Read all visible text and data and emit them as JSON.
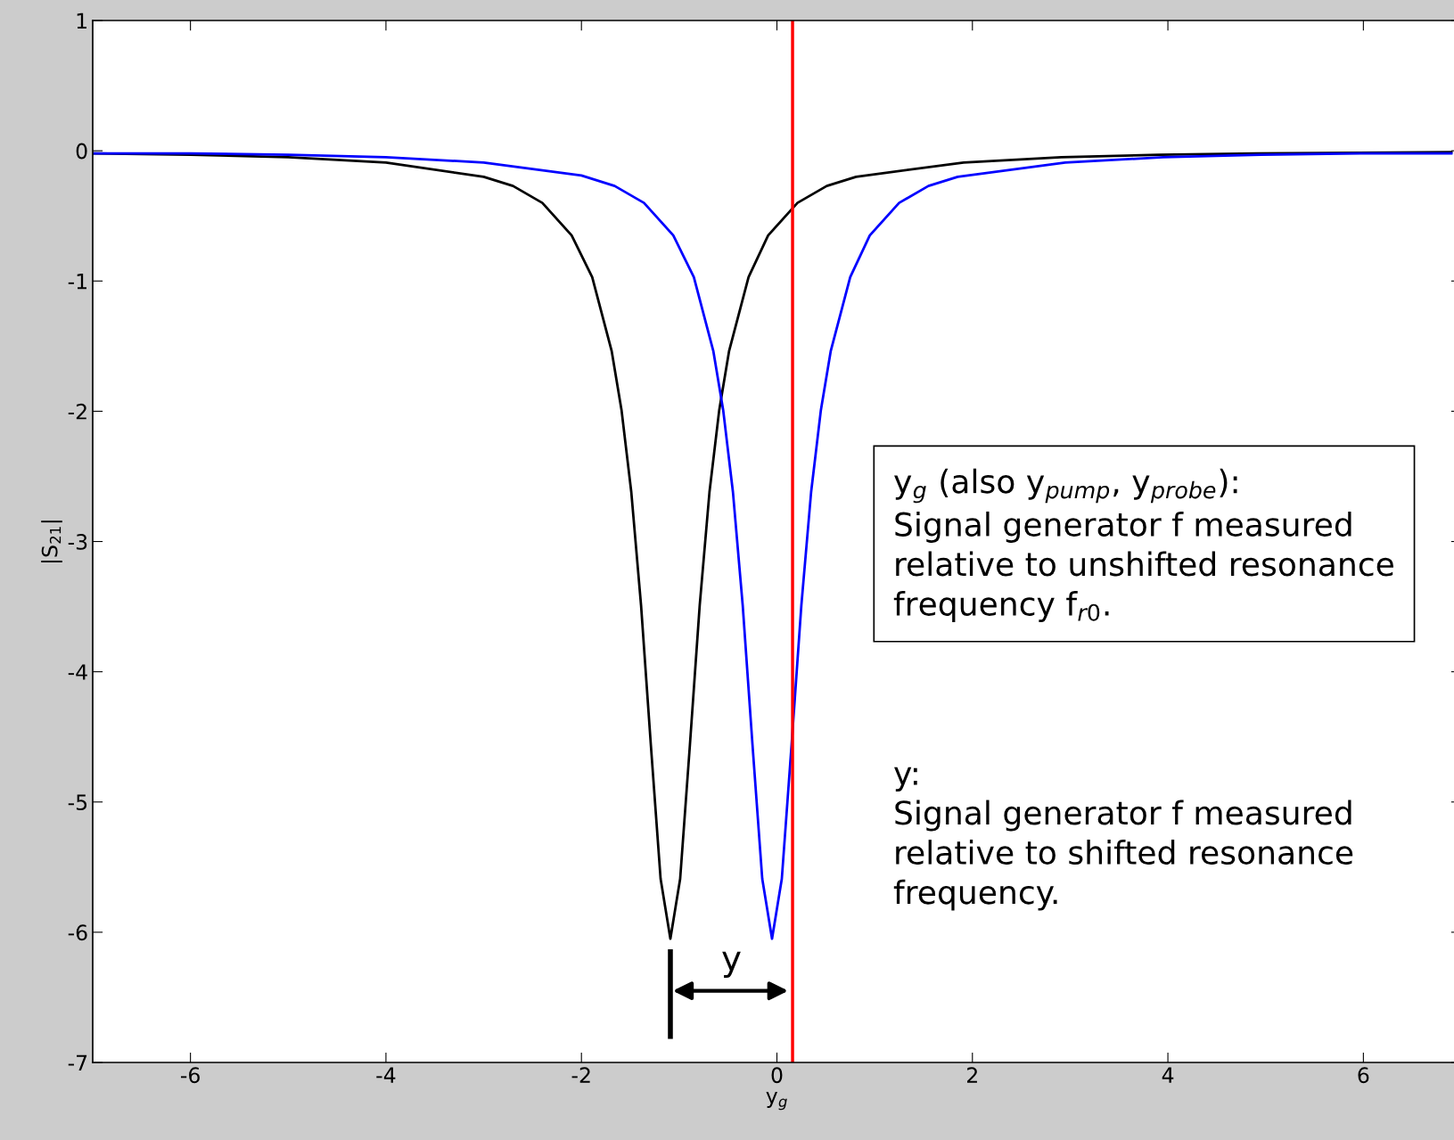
{
  "chart_data": {
    "type": "line",
    "xlabel": "y$_{g}$",
    "ylabel": "|S$_{21}$|",
    "xlim": [
      -7,
      7
    ],
    "ylim": [
      -7,
      1
    ],
    "xticks": [
      -6,
      -4,
      -2,
      0,
      2,
      4,
      6
    ],
    "yticks": [
      -7,
      -6,
      -5,
      -4,
      -3,
      -2,
      -1,
      0,
      1
    ],
    "grid": false,
    "legend": false,
    "marker": "none",
    "line_style": "solid",
    "series": [
      {
        "color": "#000000",
        "x": [
          -7,
          -6,
          -5,
          -4,
          -3,
          -2.7,
          -2.4,
          -2.1,
          -1.89,
          -1.69,
          -1.59,
          -1.49,
          -1.39,
          -1.29,
          -1.19,
          -1.09,
          -0.99,
          -0.89,
          -0.79,
          -0.69,
          -0.59,
          -0.49,
          -0.29,
          -0.09,
          0.21,
          0.51,
          0.81,
          1.91,
          2.91,
          3.91,
          4.91,
          6.9
        ],
        "values": [
          -0.02,
          -0.03,
          -0.05,
          -0.09,
          -0.2,
          -0.27,
          -0.4,
          -0.65,
          -0.97,
          -1.54,
          -1.99,
          -2.62,
          -3.49,
          -4.56,
          -5.59,
          -6.05,
          -5.59,
          -4.56,
          -3.49,
          -2.62,
          -1.99,
          -1.54,
          -0.97,
          -0.65,
          -0.4,
          -0.27,
          -0.2,
          -0.09,
          -0.05,
          -0.03,
          -0.02,
          -0.01
        ]
      },
      {
        "color": "#0000ff",
        "x": [
          -7,
          -6,
          -5,
          -4,
          -3,
          -2,
          -1.66,
          -1.36,
          -1.06,
          -0.85,
          -0.65,
          -0.55,
          -0.45,
          -0.35,
          -0.25,
          -0.15,
          -0.05,
          0.05,
          0.15,
          0.25,
          0.35,
          0.45,
          0.55,
          0.75,
          0.95,
          1.25,
          1.55,
          1.85,
          2.95,
          3.95,
          4.95,
          6,
          6.9
        ],
        "values": [
          -0.02,
          -0.02,
          -0.03,
          -0.05,
          -0.09,
          -0.19,
          -0.27,
          -0.4,
          -0.65,
          -0.97,
          -1.54,
          -1.99,
          -2.62,
          -3.49,
          -4.56,
          -5.59,
          -6.05,
          -5.59,
          -4.56,
          -3.49,
          -2.62,
          -1.99,
          -1.54,
          -0.97,
          -0.65,
          -0.4,
          -0.27,
          -0.2,
          -0.09,
          -0.05,
          -0.03,
          -0.02,
          -0.02
        ]
      }
    ],
    "ref_lines": [
      {
        "axis": "x",
        "value": 0.16,
        "color": "#ff0000",
        "line_style": "solid"
      }
    ],
    "annotations": [
      "y",
      "y$_{g}$ (also y$_{pump}$, y$_{probe}$):\nSignal generator f measured\nrelative to unshifted resonance\nfrequency f$_{r0}$.",
      "y:\nSignal generator f measured\nrelative to shifted resonance\nfrequency."
    ]
  }
}
